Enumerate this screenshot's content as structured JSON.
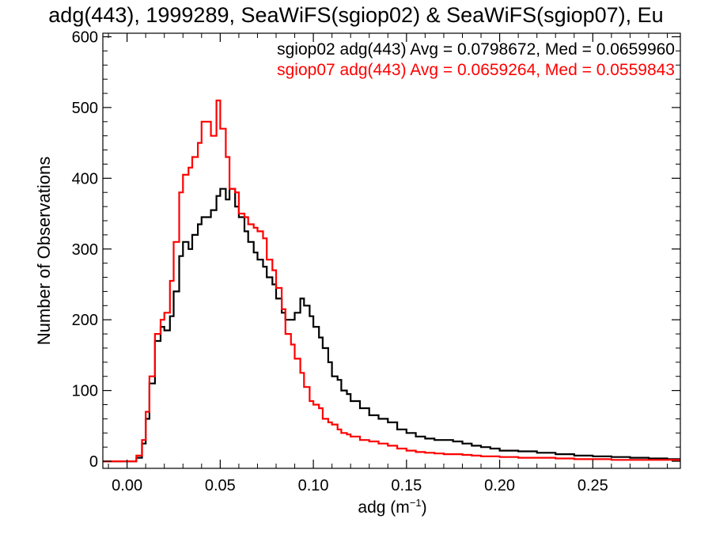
{
  "chart_data": {
    "type": "line",
    "style": "step-histogram",
    "title": "adg(443), 1999289, SeaWiFS(sgiop02) & SeaWiFS(sgiop07), Eu",
    "xlabel": "adg (m",
    "xlabel_sup": "−1",
    "xlabel_suffix": ")",
    "ylabel": "Number of Observations",
    "xlim": [
      -0.013,
      0.297
    ],
    "ylim": [
      -10,
      605
    ],
    "xticks": [
      0.0,
      0.05,
      0.1,
      0.15,
      0.2,
      0.25
    ],
    "xtick_labels": [
      "0.00",
      "0.05",
      "0.10",
      "0.15",
      "0.20",
      "0.25"
    ],
    "yticks": [
      0,
      100,
      200,
      300,
      400,
      500,
      600
    ],
    "ytick_labels": [
      "0",
      "100",
      "200",
      "300",
      "400",
      "500",
      "600"
    ],
    "grid": false,
    "legend_placement": "top-right",
    "series": [
      {
        "name": "sgiop02 adg(443) Avg = 0.0798672, Med = 0.0659960",
        "color": "#000000",
        "x": [
          -0.013,
          0.0,
          0.005,
          0.008,
          0.01,
          0.012,
          0.015,
          0.018,
          0.02,
          0.023,
          0.025,
          0.028,
          0.03,
          0.033,
          0.035,
          0.038,
          0.04,
          0.043,
          0.045,
          0.048,
          0.05,
          0.053,
          0.055,
          0.058,
          0.06,
          0.063,
          0.065,
          0.068,
          0.07,
          0.073,
          0.075,
          0.078,
          0.08,
          0.083,
          0.085,
          0.088,
          0.09,
          0.093,
          0.095,
          0.098,
          0.1,
          0.103,
          0.105,
          0.108,
          0.11,
          0.113,
          0.115,
          0.118,
          0.12,
          0.125,
          0.13,
          0.135,
          0.14,
          0.145,
          0.15,
          0.155,
          0.16,
          0.165,
          0.17,
          0.175,
          0.18,
          0.185,
          0.19,
          0.195,
          0.2,
          0.21,
          0.22,
          0.23,
          0.24,
          0.25,
          0.26,
          0.27,
          0.28,
          0.29,
          0.297
        ],
        "y": [
          0,
          0,
          5,
          25,
          60,
          110,
          170,
          190,
          185,
          205,
          240,
          290,
          310,
          300,
          320,
          335,
          345,
          345,
          355,
          375,
          385,
          370,
          385,
          360,
          345,
          325,
          310,
          295,
          285,
          275,
          260,
          250,
          230,
          210,
          200,
          200,
          210,
          230,
          220,
          205,
          190,
          175,
          160,
          140,
          120,
          115,
          100,
          95,
          85,
          75,
          65,
          60,
          55,
          45,
          40,
          35,
          32,
          30,
          30,
          28,
          25,
          22,
          20,
          18,
          15,
          14,
          12,
          10,
          8,
          7,
          6,
          5,
          4,
          3,
          3
        ]
      },
      {
        "name": "sgiop07 adg(443) Avg = 0.0659264, Med = 0.0559843",
        "color": "#ff0000",
        "x": [
          -0.013,
          0.0,
          0.005,
          0.008,
          0.01,
          0.012,
          0.015,
          0.018,
          0.02,
          0.023,
          0.025,
          0.028,
          0.03,
          0.033,
          0.035,
          0.038,
          0.04,
          0.043,
          0.045,
          0.048,
          0.05,
          0.053,
          0.055,
          0.058,
          0.06,
          0.063,
          0.065,
          0.068,
          0.07,
          0.073,
          0.075,
          0.078,
          0.08,
          0.083,
          0.085,
          0.088,
          0.09,
          0.093,
          0.095,
          0.098,
          0.1,
          0.103,
          0.105,
          0.108,
          0.11,
          0.113,
          0.115,
          0.118,
          0.12,
          0.125,
          0.13,
          0.135,
          0.14,
          0.145,
          0.15,
          0.155,
          0.16,
          0.165,
          0.17,
          0.175,
          0.18,
          0.185,
          0.19,
          0.195,
          0.2,
          0.21,
          0.22,
          0.23,
          0.24,
          0.25,
          0.26,
          0.27,
          0.28,
          0.29,
          0.297
        ],
        "y": [
          0,
          0,
          8,
          30,
          70,
          120,
          180,
          200,
          210,
          255,
          310,
          380,
          405,
          415,
          430,
          450,
          480,
          480,
          460,
          510,
          470,
          430,
          385,
          380,
          350,
          345,
          335,
          330,
          325,
          315,
          285,
          270,
          245,
          215,
          180,
          165,
          145,
          125,
          105,
          85,
          80,
          75,
          60,
          55,
          52,
          45,
          40,
          38,
          35,
          30,
          28,
          25,
          22,
          18,
          15,
          13,
          12,
          11,
          10,
          10,
          9,
          8,
          7,
          7,
          6,
          5,
          5,
          4,
          3,
          3,
          2,
          2,
          2,
          2,
          2
        ]
      }
    ]
  }
}
